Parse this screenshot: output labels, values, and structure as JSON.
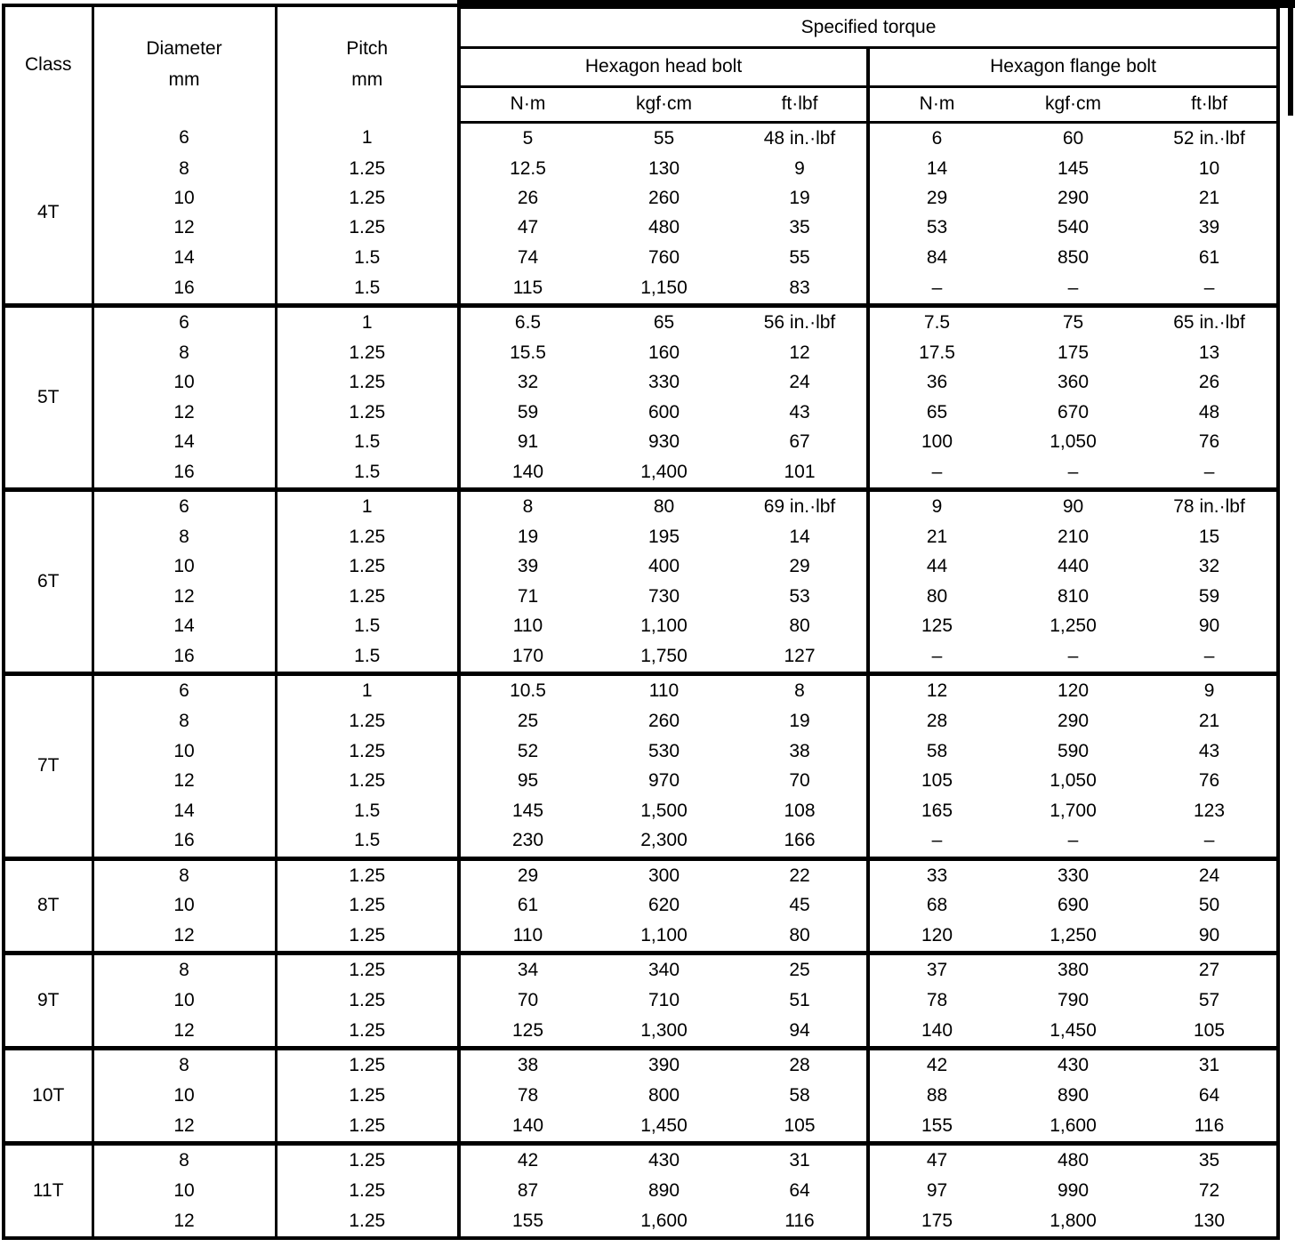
{
  "colors": {
    "ink": "#000000",
    "paper": "#ffffff"
  },
  "table": {
    "headers": {
      "class": "Class",
      "diameter": "Diameter",
      "diameter_unit": "mm",
      "pitch": "Pitch",
      "pitch_unit": "mm",
      "specified_torque": "Specified torque",
      "hexagon_head_bolt": "Hexagon head bolt",
      "hexagon_flange_bolt": "Hexagon flange bolt",
      "units": {
        "nm": "N·m",
        "kgfcm": "kgf·cm",
        "ftlbf": "ft·lbf"
      }
    },
    "groups": [
      {
        "class": "4T",
        "rows": [
          {
            "diameter": "6",
            "pitch": "1",
            "head": [
              "5",
              "55",
              "48 in.·lbf"
            ],
            "flange": [
              "6",
              "60",
              "52 in.·lbf"
            ]
          },
          {
            "diameter": "8",
            "pitch": "1.25",
            "head": [
              "12.5",
              "130",
              "9"
            ],
            "flange": [
              "14",
              "145",
              "10"
            ]
          },
          {
            "diameter": "10",
            "pitch": "1.25",
            "head": [
              "26",
              "260",
              "19"
            ],
            "flange": [
              "29",
              "290",
              "21"
            ]
          },
          {
            "diameter": "12",
            "pitch": "1.25",
            "head": [
              "47",
              "480",
              "35"
            ],
            "flange": [
              "53",
              "540",
              "39"
            ]
          },
          {
            "diameter": "14",
            "pitch": "1.5",
            "head": [
              "74",
              "760",
              "55"
            ],
            "flange": [
              "84",
              "850",
              "61"
            ]
          },
          {
            "diameter": "16",
            "pitch": "1.5",
            "head": [
              "115",
              "1,150",
              "83"
            ],
            "flange": [
              "–",
              "–",
              "–"
            ]
          }
        ]
      },
      {
        "class": "5T",
        "rows": [
          {
            "diameter": "6",
            "pitch": "1",
            "head": [
              "6.5",
              "65",
              "56 in.·lbf"
            ],
            "flange": [
              "7.5",
              "75",
              "65 in.·lbf"
            ]
          },
          {
            "diameter": "8",
            "pitch": "1.25",
            "head": [
              "15.5",
              "160",
              "12"
            ],
            "flange": [
              "17.5",
              "175",
              "13"
            ]
          },
          {
            "diameter": "10",
            "pitch": "1.25",
            "head": [
              "32",
              "330",
              "24"
            ],
            "flange": [
              "36",
              "360",
              "26"
            ]
          },
          {
            "diameter": "12",
            "pitch": "1.25",
            "head": [
              "59",
              "600",
              "43"
            ],
            "flange": [
              "65",
              "670",
              "48"
            ]
          },
          {
            "diameter": "14",
            "pitch": "1.5",
            "head": [
              "91",
              "930",
              "67"
            ],
            "flange": [
              "100",
              "1,050",
              "76"
            ]
          },
          {
            "diameter": "16",
            "pitch": "1.5",
            "head": [
              "140",
              "1,400",
              "101"
            ],
            "flange": [
              "–",
              "–",
              "–"
            ]
          }
        ]
      },
      {
        "class": "6T",
        "rows": [
          {
            "diameter": "6",
            "pitch": "1",
            "head": [
              "8",
              "80",
              "69 in.·lbf"
            ],
            "flange": [
              "9",
              "90",
              "78 in.·lbf"
            ]
          },
          {
            "diameter": "8",
            "pitch": "1.25",
            "head": [
              "19",
              "195",
              "14"
            ],
            "flange": [
              "21",
              "210",
              "15"
            ]
          },
          {
            "diameter": "10",
            "pitch": "1.25",
            "head": [
              "39",
              "400",
              "29"
            ],
            "flange": [
              "44",
              "440",
              "32"
            ]
          },
          {
            "diameter": "12",
            "pitch": "1.25",
            "head": [
              "71",
              "730",
              "53"
            ],
            "flange": [
              "80",
              "810",
              "59"
            ]
          },
          {
            "diameter": "14",
            "pitch": "1.5",
            "head": [
              "110",
              "1,100",
              "80"
            ],
            "flange": [
              "125",
              "1,250",
              "90"
            ]
          },
          {
            "diameter": "16",
            "pitch": "1.5",
            "head": [
              "170",
              "1,750",
              "127"
            ],
            "flange": [
              "–",
              "–",
              "–"
            ]
          }
        ]
      },
      {
        "class": "7T",
        "rows": [
          {
            "diameter": "6",
            "pitch": "1",
            "head": [
              "10.5",
              "110",
              "8"
            ],
            "flange": [
              "12",
              "120",
              "9"
            ]
          },
          {
            "diameter": "8",
            "pitch": "1.25",
            "head": [
              "25",
              "260",
              "19"
            ],
            "flange": [
              "28",
              "290",
              "21"
            ]
          },
          {
            "diameter": "10",
            "pitch": "1.25",
            "head": [
              "52",
              "530",
              "38"
            ],
            "flange": [
              "58",
              "590",
              "43"
            ]
          },
          {
            "diameter": "12",
            "pitch": "1.25",
            "head": [
              "95",
              "970",
              "70"
            ],
            "flange": [
              "105",
              "1,050",
              "76"
            ]
          },
          {
            "diameter": "14",
            "pitch": "1.5",
            "head": [
              "145",
              "1,500",
              "108"
            ],
            "flange": [
              "165",
              "1,700",
              "123"
            ]
          },
          {
            "diameter": "16",
            "pitch": "1.5",
            "head": [
              "230",
              "2,300",
              "166"
            ],
            "flange": [
              "–",
              "–",
              "–"
            ]
          }
        ]
      },
      {
        "class": "8T",
        "rows": [
          {
            "diameter": "8",
            "pitch": "1.25",
            "head": [
              "29",
              "300",
              "22"
            ],
            "flange": [
              "33",
              "330",
              "24"
            ]
          },
          {
            "diameter": "10",
            "pitch": "1.25",
            "head": [
              "61",
              "620",
              "45"
            ],
            "flange": [
              "68",
              "690",
              "50"
            ]
          },
          {
            "diameter": "12",
            "pitch": "1.25",
            "head": [
              "110",
              "1,100",
              "80"
            ],
            "flange": [
              "120",
              "1,250",
              "90"
            ]
          }
        ]
      },
      {
        "class": "9T",
        "rows": [
          {
            "diameter": "8",
            "pitch": "1.25",
            "head": [
              "34",
              "340",
              "25"
            ],
            "flange": [
              "37",
              "380",
              "27"
            ]
          },
          {
            "diameter": "10",
            "pitch": "1.25",
            "head": [
              "70",
              "710",
              "51"
            ],
            "flange": [
              "78",
              "790",
              "57"
            ]
          },
          {
            "diameter": "12",
            "pitch": "1.25",
            "head": [
              "125",
              "1,300",
              "94"
            ],
            "flange": [
              "140",
              "1,450",
              "105"
            ]
          }
        ]
      },
      {
        "class": "10T",
        "rows": [
          {
            "diameter": "8",
            "pitch": "1.25",
            "head": [
              "38",
              "390",
              "28"
            ],
            "flange": [
              "42",
              "430",
              "31"
            ]
          },
          {
            "diameter": "10",
            "pitch": "1.25",
            "head": [
              "78",
              "800",
              "58"
            ],
            "flange": [
              "88",
              "890",
              "64"
            ]
          },
          {
            "diameter": "12",
            "pitch": "1.25",
            "head": [
              "140",
              "1,450",
              "105"
            ],
            "flange": [
              "155",
              "1,600",
              "116"
            ]
          }
        ]
      },
      {
        "class": "11T",
        "rows": [
          {
            "diameter": "8",
            "pitch": "1.25",
            "head": [
              "42",
              "430",
              "31"
            ],
            "flange": [
              "47",
              "480",
              "35"
            ]
          },
          {
            "diameter": "10",
            "pitch": "1.25",
            "head": [
              "87",
              "890",
              "64"
            ],
            "flange": [
              "97",
              "990",
              "72"
            ]
          },
          {
            "diameter": "12",
            "pitch": "1.25",
            "head": [
              "155",
              "1,600",
              "116"
            ],
            "flange": [
              "175",
              "1,800",
              "130"
            ]
          }
        ]
      }
    ]
  }
}
